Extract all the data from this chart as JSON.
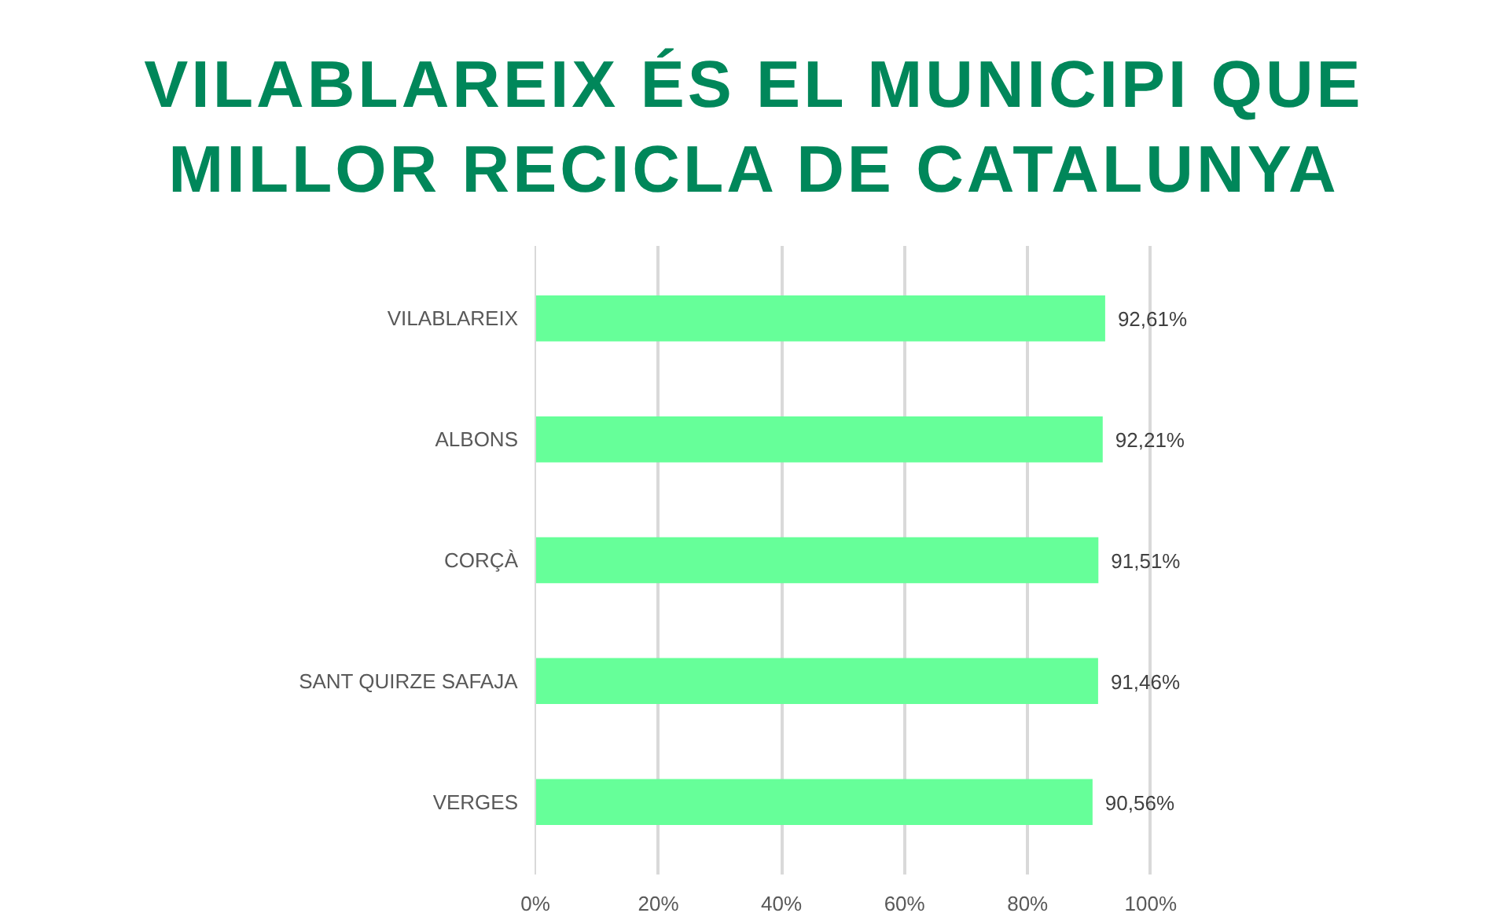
{
  "chart_data": {
    "type": "bar",
    "orientation": "horizontal",
    "title": "VILABLAREIX ÉS EL MUNICIPI QUE MILLOR RECICLA DE CATALUNYA",
    "categories": [
      "VILABLAREIX",
      "ALBONS",
      "CORÇÀ",
      "SANT QUIRZE SAFAJA",
      "VERGES"
    ],
    "values": [
      92.61,
      92.21,
      91.51,
      91.46,
      90.56
    ],
    "value_labels": [
      "92,61%",
      "92,21%",
      "91,51%",
      "91,46%",
      "90,56%"
    ],
    "color": "#66ff99",
    "xlim": [
      0,
      100
    ],
    "xticks": [
      {
        "value": 0,
        "label": "0%"
      },
      {
        "value": 20,
        "label": "20%"
      },
      {
        "value": 40,
        "label": "40%"
      },
      {
        "value": 60,
        "label": "60%"
      },
      {
        "value": 80,
        "label": "80%"
      },
      {
        "value": 100,
        "label": "100%"
      }
    ],
    "grid": "x"
  }
}
